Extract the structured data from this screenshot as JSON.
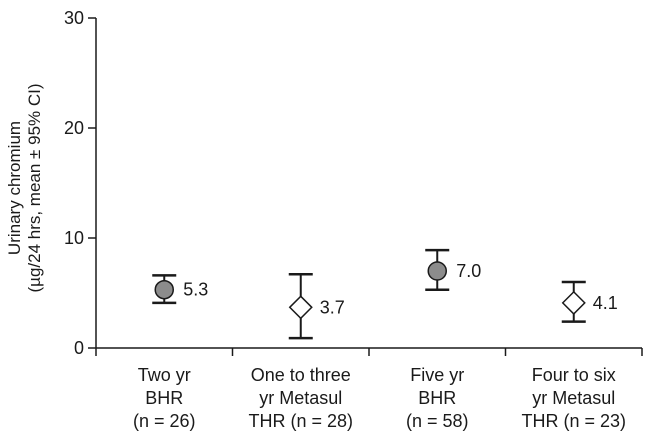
{
  "chart_data": {
    "type": "scatter",
    "title": "",
    "ylabel": [
      "Urinary chromium",
      "(µg/24 hrs, mean ± 95% CI)"
    ],
    "ylim": [
      0,
      30
    ],
    "yticks": [
      0,
      10,
      20,
      30
    ],
    "grid": false,
    "categories": [
      [
        "Two yr",
        "BHR",
        "(n = 26)"
      ],
      [
        "One to three",
        "yr Metasul",
        "THR (n = 28)"
      ],
      [
        "Five yr",
        "BHR",
        "(n = 58)"
      ],
      [
        "Four to six",
        "yr Metasul",
        "THR (n = 23)"
      ]
    ],
    "points": [
      {
        "mean": 5.3,
        "ci_low": 4.1,
        "ci_high": 6.6,
        "label": "5.3",
        "marker": "circle",
        "color": "#8c8c8c"
      },
      {
        "mean": 3.7,
        "ci_low": 0.9,
        "ci_high": 6.7,
        "label": "3.7",
        "marker": "diamond",
        "color": "#ffffff"
      },
      {
        "mean": 7.0,
        "ci_low": 5.3,
        "ci_high": 8.9,
        "label": "7.0",
        "marker": "circle",
        "color": "#8c8c8c"
      },
      {
        "mean": 4.1,
        "ci_low": 2.4,
        "ci_high": 6.0,
        "label": "4.1",
        "marker": "diamond",
        "color": "#ffffff"
      }
    ]
  }
}
